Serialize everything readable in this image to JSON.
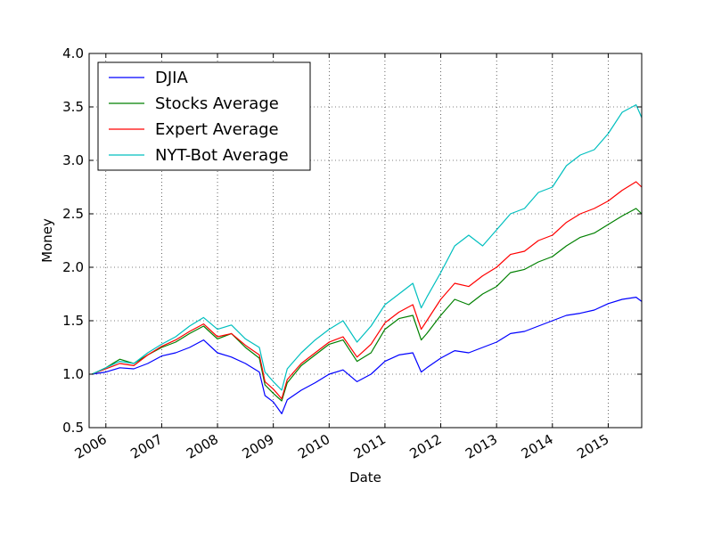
{
  "chart_data": {
    "type": "line",
    "title": "",
    "xlabel": "Date",
    "ylabel": "Money",
    "ylim": [
      0.5,
      4.0
    ],
    "y_ticks": [
      "0.5",
      "1.0",
      "1.5",
      "2.0",
      "2.5",
      "3.0",
      "3.5",
      "4.0"
    ],
    "x_ticks": [
      "2006",
      "2007",
      "2008",
      "2009",
      "2010",
      "2011",
      "2012",
      "2013",
      "2014",
      "2015"
    ],
    "xlim": [
      2005.7,
      2015.6
    ],
    "grid": true,
    "legend_position": "top-left",
    "series": [
      {
        "name": "DJIA",
        "color": "#0000ff",
        "x": [
          2005.75,
          2006.0,
          2006.25,
          2006.5,
          2006.75,
          2007.0,
          2007.25,
          2007.5,
          2007.75,
          2008.0,
          2008.25,
          2008.5,
          2008.75,
          2008.85,
          2009.0,
          2009.15,
          2009.25,
          2009.5,
          2009.75,
          2010.0,
          2010.25,
          2010.5,
          2010.75,
          2011.0,
          2011.25,
          2011.5,
          2011.65,
          2011.75,
          2012.0,
          2012.25,
          2012.5,
          2012.75,
          2013.0,
          2013.25,
          2013.5,
          2013.75,
          2014.0,
          2014.25,
          2014.5,
          2014.75,
          2015.0,
          2015.25,
          2015.5,
          2015.6
        ],
        "values": [
          1.0,
          1.02,
          1.06,
          1.05,
          1.1,
          1.17,
          1.2,
          1.25,
          1.32,
          1.2,
          1.16,
          1.1,
          1.02,
          0.8,
          0.74,
          0.63,
          0.76,
          0.85,
          0.92,
          1.0,
          1.04,
          0.93,
          1.0,
          1.12,
          1.18,
          1.2,
          1.02,
          1.06,
          1.15,
          1.22,
          1.2,
          1.25,
          1.3,
          1.38,
          1.4,
          1.45,
          1.5,
          1.55,
          1.57,
          1.6,
          1.66,
          1.7,
          1.72,
          1.68
        ]
      },
      {
        "name": "Stocks Average",
        "color": "#008000",
        "x": [
          2005.75,
          2006.0,
          2006.25,
          2006.5,
          2006.75,
          2007.0,
          2007.25,
          2007.5,
          2007.75,
          2008.0,
          2008.25,
          2008.5,
          2008.75,
          2008.85,
          2009.0,
          2009.15,
          2009.25,
          2009.5,
          2009.75,
          2010.0,
          2010.25,
          2010.5,
          2010.75,
          2011.0,
          2011.25,
          2011.5,
          2011.65,
          2011.75,
          2012.0,
          2012.25,
          2012.5,
          2012.75,
          2013.0,
          2013.25,
          2013.5,
          2013.75,
          2014.0,
          2014.25,
          2014.5,
          2014.75,
          2015.0,
          2015.25,
          2015.5,
          2015.6
        ],
        "values": [
          1.0,
          1.06,
          1.14,
          1.1,
          1.18,
          1.25,
          1.3,
          1.38,
          1.45,
          1.33,
          1.38,
          1.25,
          1.15,
          0.9,
          0.82,
          0.75,
          0.92,
          1.08,
          1.18,
          1.28,
          1.32,
          1.12,
          1.2,
          1.42,
          1.52,
          1.55,
          1.32,
          1.38,
          1.55,
          1.7,
          1.65,
          1.75,
          1.82,
          1.95,
          1.98,
          2.05,
          2.1,
          2.2,
          2.28,
          2.32,
          2.4,
          2.48,
          2.55,
          2.5
        ]
      },
      {
        "name": "Expert Average",
        "color": "#ff0000",
        "x": [
          2005.75,
          2006.0,
          2006.25,
          2006.5,
          2006.75,
          2007.0,
          2007.25,
          2007.5,
          2007.75,
          2008.0,
          2008.25,
          2008.5,
          2008.75,
          2008.85,
          2009.0,
          2009.15,
          2009.25,
          2009.5,
          2009.75,
          2010.0,
          2010.25,
          2010.5,
          2010.75,
          2011.0,
          2011.25,
          2011.5,
          2011.65,
          2011.75,
          2012.0,
          2012.25,
          2012.5,
          2012.75,
          2013.0,
          2013.25,
          2013.5,
          2013.75,
          2014.0,
          2014.25,
          2014.5,
          2014.75,
          2015.0,
          2015.25,
          2015.5,
          2015.6
        ],
        "values": [
          1.0,
          1.05,
          1.1,
          1.08,
          1.18,
          1.26,
          1.32,
          1.4,
          1.47,
          1.35,
          1.38,
          1.27,
          1.18,
          0.93,
          0.86,
          0.77,
          0.95,
          1.1,
          1.2,
          1.3,
          1.35,
          1.16,
          1.28,
          1.48,
          1.58,
          1.65,
          1.42,
          1.5,
          1.7,
          1.85,
          1.82,
          1.92,
          2.0,
          2.12,
          2.15,
          2.25,
          2.3,
          2.42,
          2.5,
          2.55,
          2.62,
          2.72,
          2.8,
          2.75
        ]
      },
      {
        "name": "NYT-Bot Average",
        "color": "#00bfbf",
        "x": [
          2005.75,
          2006.0,
          2006.25,
          2006.5,
          2006.75,
          2007.0,
          2007.25,
          2007.5,
          2007.75,
          2008.0,
          2008.25,
          2008.5,
          2008.75,
          2008.85,
          2009.0,
          2009.15,
          2009.25,
          2009.5,
          2009.75,
          2010.0,
          2010.25,
          2010.5,
          2010.75,
          2011.0,
          2011.25,
          2011.5,
          2011.65,
          2011.75,
          2012.0,
          2012.25,
          2012.5,
          2012.75,
          2013.0,
          2013.25,
          2013.5,
          2013.75,
          2014.0,
          2014.25,
          2014.5,
          2014.75,
          2015.0,
          2015.25,
          2015.5,
          2015.6
        ],
        "values": [
          1.0,
          1.06,
          1.12,
          1.1,
          1.2,
          1.28,
          1.35,
          1.45,
          1.53,
          1.42,
          1.46,
          1.33,
          1.25,
          1.02,
          0.93,
          0.85,
          1.05,
          1.2,
          1.32,
          1.42,
          1.5,
          1.3,
          1.45,
          1.65,
          1.75,
          1.85,
          1.62,
          1.72,
          1.95,
          2.2,
          2.3,
          2.2,
          2.35,
          2.5,
          2.55,
          2.7,
          2.75,
          2.95,
          3.05,
          3.1,
          3.25,
          3.45,
          3.52,
          3.4
        ]
      }
    ]
  }
}
